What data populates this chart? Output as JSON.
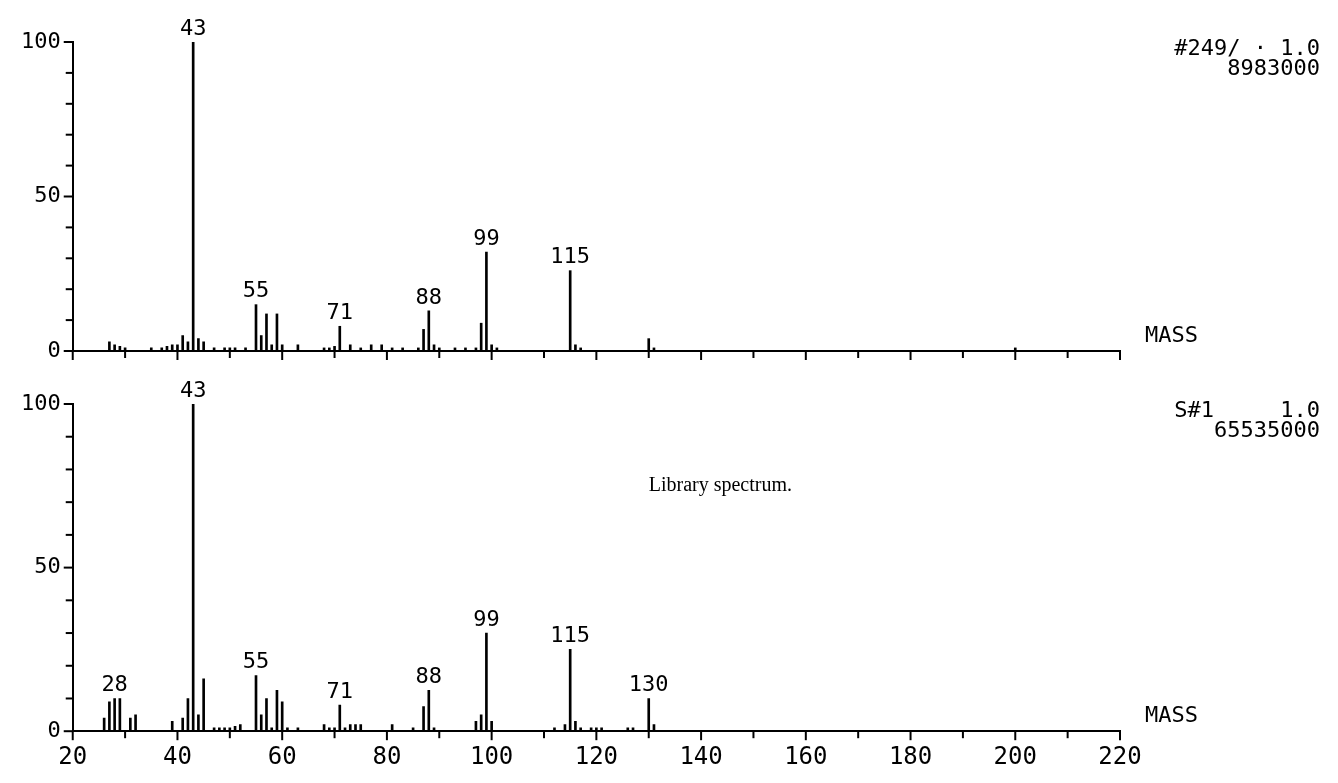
{
  "chart_data": [
    {
      "type": "bar",
      "xlabel": "MASS",
      "color": "#000000",
      "tick_labels": "y",
      "grid": false,
      "x": [
        27,
        28,
        29,
        30,
        35,
        37,
        38,
        39,
        40,
        41,
        42,
        43,
        44,
        45,
        47,
        49,
        50,
        51,
        53,
        55,
        56,
        57,
        58,
        59,
        60,
        63,
        68,
        69,
        70,
        71,
        73,
        75,
        77,
        79,
        81,
        83,
        86,
        87,
        88,
        89,
        90,
        93,
        95,
        97,
        98,
        99,
        100,
        101,
        115,
        116,
        117,
        130,
        131,
        200
      ],
      "values": [
        3,
        2,
        1.5,
        1,
        1,
        1,
        1.5,
        2,
        2,
        5,
        3,
        100,
        4,
        3,
        1,
        1,
        1,
        1,
        1,
        15,
        5,
        12,
        2,
        12,
        2,
        2,
        1,
        1,
        1.5,
        8,
        2,
        1,
        2,
        2,
        1,
        1,
        1,
        7,
        13,
        2,
        1,
        1,
        1,
        1,
        9,
        32,
        2,
        1,
        26,
        2,
        1,
        4,
        1,
        1
      ],
      "xlim": [
        20,
        220
      ],
      "xticks": [
        20,
        {
          "value": 30,
          "label": null
        },
        40,
        {
          "value": 50,
          "label": null
        },
        60,
        {
          "value": 70,
          "label": null
        },
        80,
        {
          "value": 90,
          "label": null
        },
        100,
        {
          "value": 110,
          "label": null
        },
        120,
        {
          "value": 130,
          "label": null
        },
        140,
        {
          "value": 150,
          "label": null
        },
        160,
        {
          "value": 170,
          "label": null
        },
        180,
        {
          "value": 190,
          "label": null
        },
        200,
        {
          "value": 210,
          "label": null
        },
        220
      ],
      "ylim": [
        0,
        100
      ],
      "yticks": [
        0,
        {
          "value": 10,
          "label": null
        },
        {
          "value": 20,
          "label": null
        },
        {
          "value": 30,
          "label": null
        },
        {
          "value": 40,
          "label": null
        },
        50,
        {
          "value": 60,
          "label": null
        },
        {
          "value": 70,
          "label": null
        },
        {
          "value": 80,
          "label": null
        },
        {
          "value": 90,
          "label": null
        },
        100
      ],
      "annotations": [
        {
          "text": "43",
          "x": 43,
          "y": 100
        },
        {
          "text": "55",
          "x": 55,
          "y": 15
        },
        {
          "text": "71",
          "x": 71,
          "y": 8
        },
        {
          "text": "88",
          "x": 88,
          "y": 13
        },
        {
          "text": "99",
          "x": 99,
          "y": 32
        },
        {
          "text": "115",
          "x": 115,
          "y": 26
        },
        "#249/ · 1.0",
        "8983000"
      ]
    },
    {
      "type": "bar",
      "xlabel": "MASS",
      "subtitle": "Library spectrum.",
      "color": "#000000",
      "grid": false,
      "x": [
        26,
        27,
        28,
        29,
        31,
        32,
        39,
        41,
        42,
        43,
        44,
        45,
        47,
        48,
        49,
        50,
        51,
        52,
        55,
        56,
        57,
        58,
        59,
        60,
        61,
        63,
        68,
        69,
        70,
        71,
        72,
        73,
        74,
        75,
        81,
        85,
        87,
        88,
        89,
        97,
        98,
        99,
        100,
        112,
        114,
        115,
        116,
        117,
        119,
        120,
        121,
        126,
        127,
        130,
        131
      ],
      "values": [
        4,
        9,
        10,
        10,
        4,
        5,
        3,
        4,
        10,
        100,
        5,
        16,
        1,
        1,
        1,
        1,
        1.5,
        2,
        17,
        5,
        10,
        1,
        12.5,
        9,
        1,
        1,
        2,
        1,
        1,
        8,
        1,
        2,
        2,
        2,
        2,
        1,
        7.5,
        12.5,
        1,
        3,
        5,
        30,
        3,
        1,
        2,
        25,
        3,
        1,
        1,
        1,
        1,
        1,
        1,
        10,
        2
      ],
      "xlim": [
        20,
        220
      ],
      "xticks": [
        20,
        {
          "value": 30,
          "label": null
        },
        40,
        {
          "value": 50,
          "label": null
        },
        60,
        {
          "value": 70,
          "label": null
        },
        80,
        {
          "value": 90,
          "label": null
        },
        100,
        {
          "value": 110,
          "label": null
        },
        120,
        {
          "value": 130,
          "label": null
        },
        140,
        {
          "value": 150,
          "label": null
        },
        160,
        {
          "value": 170,
          "label": null
        },
        180,
        {
          "value": 190,
          "label": null
        },
        200,
        {
          "value": 210,
          "label": null
        },
        220
      ],
      "ylim": [
        0,
        100
      ],
      "yticks": [
        0,
        {
          "value": 10,
          "label": null
        },
        {
          "value": 20,
          "label": null
        },
        {
          "value": 30,
          "label": null
        },
        {
          "value": 40,
          "label": null
        },
        50,
        {
          "value": 60,
          "label": null
        },
        {
          "value": 70,
          "label": null
        },
        {
          "value": 80,
          "label": null
        },
        {
          "value": 90,
          "label": null
        },
        100
      ],
      "annotations": [
        {
          "text": "28",
          "x": 28,
          "y": 10
        },
        {
          "text": "43",
          "x": 43,
          "y": 100
        },
        {
          "text": "55",
          "x": 55,
          "y": 17
        },
        {
          "text": "71",
          "x": 71,
          "y": 8
        },
        {
          "text": "88",
          "x": 88,
          "y": 12.5
        },
        {
          "text": "99",
          "x": 99,
          "y": 30
        },
        {
          "text": "115",
          "x": 115,
          "y": 25
        },
        {
          "text": "130",
          "x": 130,
          "y": 10
        },
        "S#1     1.0",
        "65535000"
      ]
    }
  ]
}
